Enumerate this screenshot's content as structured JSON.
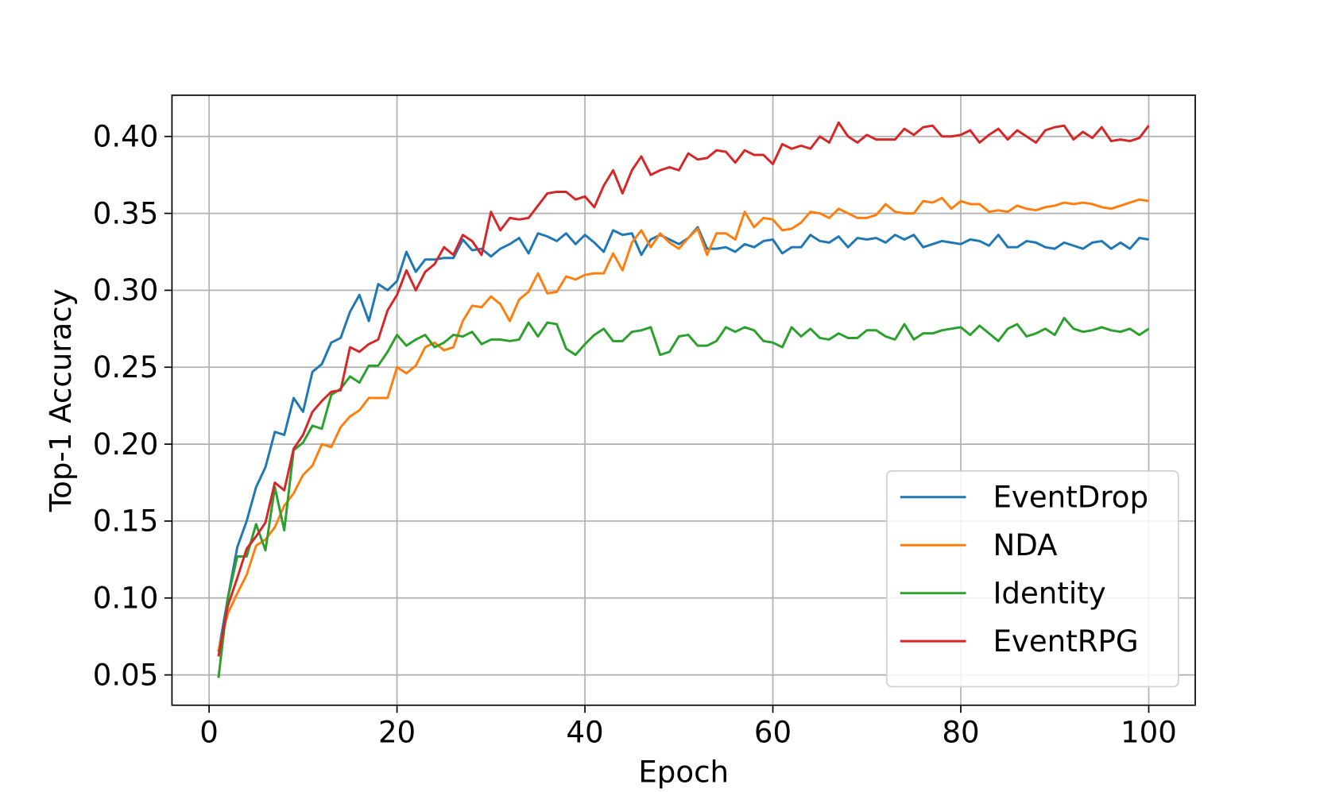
{
  "chart_data": {
    "type": "line",
    "xlabel": "Epoch",
    "ylabel": "Top-1 Accuracy",
    "x": [
      1,
      2,
      3,
      4,
      5,
      6,
      7,
      8,
      9,
      10,
      11,
      12,
      13,
      14,
      15,
      16,
      17,
      18,
      19,
      20,
      21,
      22,
      23,
      24,
      25,
      26,
      27,
      28,
      29,
      30,
      31,
      32,
      33,
      34,
      35,
      36,
      37,
      38,
      39,
      40,
      41,
      42,
      43,
      44,
      45,
      46,
      47,
      48,
      49,
      50,
      51,
      52,
      53,
      54,
      55,
      56,
      57,
      58,
      59,
      60,
      61,
      62,
      63,
      64,
      65,
      66,
      67,
      68,
      69,
      70,
      71,
      72,
      73,
      74,
      75,
      76,
      77,
      78,
      79,
      80,
      81,
      82,
      83,
      84,
      85,
      86,
      87,
      88,
      89,
      90,
      91,
      92,
      93,
      94,
      95,
      96,
      97,
      98,
      99,
      100
    ],
    "series": [
      {
        "name": "EventDrop",
        "color": "#1f77b4",
        "values": [
          0.065,
          0.1,
          0.133,
          0.15,
          0.172,
          0.185,
          0.208,
          0.206,
          0.23,
          0.221,
          0.247,
          0.252,
          0.266,
          0.269,
          0.286,
          0.297,
          0.28,
          0.304,
          0.3,
          0.306,
          0.325,
          0.312,
          0.32,
          0.32,
          0.321,
          0.321,
          0.333,
          0.326,
          0.327,
          0.322,
          0.327,
          0.33,
          0.334,
          0.324,
          0.337,
          0.335,
          0.332,
          0.337,
          0.33,
          0.336,
          0.331,
          0.325,
          0.339,
          0.336,
          0.337,
          0.323,
          0.333,
          0.336,
          0.333,
          0.33,
          0.334,
          0.341,
          0.327,
          0.327,
          0.328,
          0.325,
          0.33,
          0.328,
          0.332,
          0.333,
          0.324,
          0.328,
          0.328,
          0.336,
          0.332,
          0.331,
          0.335,
          0.328,
          0.334,
          0.333,
          0.334,
          0.331,
          0.336,
          0.333,
          0.336,
          0.328,
          0.33,
          0.332,
          0.331,
          0.33,
          0.333,
          0.332,
          0.329,
          0.336,
          0.328,
          0.328,
          0.332,
          0.331,
          0.328,
          0.327,
          0.331,
          0.329,
          0.327,
          0.331,
          0.332,
          0.327,
          0.331,
          0.327,
          0.334,
          0.333
        ]
      },
      {
        "name": "NDA",
        "color": "#ff7f0e",
        "values": [
          0.066,
          0.09,
          0.103,
          0.115,
          0.134,
          0.138,
          0.146,
          0.16,
          0.168,
          0.18,
          0.186,
          0.2,
          0.198,
          0.211,
          0.218,
          0.222,
          0.23,
          0.23,
          0.23,
          0.25,
          0.246,
          0.251,
          0.263,
          0.266,
          0.261,
          0.263,
          0.28,
          0.29,
          0.289,
          0.296,
          0.291,
          0.28,
          0.294,
          0.299,
          0.311,
          0.298,
          0.299,
          0.309,
          0.307,
          0.31,
          0.311,
          0.311,
          0.324,
          0.313,
          0.331,
          0.339,
          0.328,
          0.337,
          0.331,
          0.327,
          0.334,
          0.34,
          0.323,
          0.337,
          0.337,
          0.333,
          0.351,
          0.341,
          0.347,
          0.346,
          0.339,
          0.34,
          0.344,
          0.351,
          0.35,
          0.347,
          0.353,
          0.35,
          0.347,
          0.347,
          0.349,
          0.356,
          0.351,
          0.35,
          0.35,
          0.358,
          0.357,
          0.36,
          0.353,
          0.358,
          0.356,
          0.356,
          0.351,
          0.352,
          0.351,
          0.355,
          0.353,
          0.352,
          0.354,
          0.355,
          0.357,
          0.356,
          0.357,
          0.356,
          0.354,
          0.353,
          0.355,
          0.357,
          0.359,
          0.358
        ]
      },
      {
        "name": "Identity",
        "color": "#2ca02c",
        "values": [
          0.048,
          0.1,
          0.127,
          0.127,
          0.148,
          0.131,
          0.172,
          0.144,
          0.196,
          0.201,
          0.212,
          0.21,
          0.232,
          0.236,
          0.244,
          0.24,
          0.251,
          0.251,
          0.26,
          0.271,
          0.264,
          0.268,
          0.271,
          0.263,
          0.266,
          0.271,
          0.27,
          0.273,
          0.265,
          0.268,
          0.268,
          0.267,
          0.268,
          0.279,
          0.27,
          0.279,
          0.278,
          0.262,
          0.258,
          0.265,
          0.271,
          0.275,
          0.267,
          0.267,
          0.273,
          0.274,
          0.276,
          0.258,
          0.26,
          0.27,
          0.271,
          0.264,
          0.264,
          0.267,
          0.276,
          0.273,
          0.276,
          0.274,
          0.267,
          0.266,
          0.263,
          0.276,
          0.27,
          0.275,
          0.269,
          0.268,
          0.272,
          0.269,
          0.269,
          0.274,
          0.274,
          0.27,
          0.268,
          0.278,
          0.268,
          0.272,
          0.272,
          0.274,
          0.275,
          0.276,
          0.271,
          0.277,
          0.272,
          0.267,
          0.275,
          0.278,
          0.27,
          0.272,
          0.275,
          0.271,
          0.282,
          0.275,
          0.273,
          0.274,
          0.276,
          0.274,
          0.273,
          0.275,
          0.271,
          0.275
        ]
      },
      {
        "name": "EventRPG",
        "color": "#d62728",
        "values": [
          0.062,
          0.095,
          0.113,
          0.132,
          0.14,
          0.149,
          0.175,
          0.17,
          0.197,
          0.206,
          0.221,
          0.228,
          0.234,
          0.235,
          0.263,
          0.26,
          0.265,
          0.268,
          0.287,
          0.297,
          0.313,
          0.3,
          0.312,
          0.317,
          0.328,
          0.323,
          0.336,
          0.332,
          0.323,
          0.351,
          0.339,
          0.347,
          0.346,
          0.347,
          0.355,
          0.363,
          0.364,
          0.364,
          0.359,
          0.361,
          0.354,
          0.368,
          0.378,
          0.363,
          0.378,
          0.387,
          0.375,
          0.378,
          0.38,
          0.378,
          0.389,
          0.385,
          0.386,
          0.391,
          0.39,
          0.383,
          0.391,
          0.388,
          0.388,
          0.382,
          0.395,
          0.392,
          0.394,
          0.392,
          0.4,
          0.396,
          0.409,
          0.4,
          0.396,
          0.401,
          0.398,
          0.398,
          0.398,
          0.405,
          0.401,
          0.406,
          0.407,
          0.4,
          0.4,
          0.401,
          0.404,
          0.396,
          0.401,
          0.405,
          0.398,
          0.404,
          0.4,
          0.396,
          0.404,
          0.406,
          0.407,
          0.398,
          0.403,
          0.399,
          0.406,
          0.397,
          0.398,
          0.397,
          0.399,
          0.407
        ]
      }
    ],
    "xlim": [
      -3.95,
      104.95
    ],
    "ylim": [
      0.0303,
      0.4268
    ],
    "xticks": [
      0,
      20,
      40,
      60,
      80,
      100
    ],
    "yticks": [
      0.05,
      {
        "value": 0.1,
        "label": "0.10"
      },
      0.15,
      {
        "value": 0.2,
        "label": "0.20"
      },
      0.25,
      {
        "value": 0.3,
        "label": "0.30"
      },
      0.35,
      {
        "value": 0.4,
        "label": "0.40"
      }
    ],
    "grid": true,
    "legend": "lower right"
  }
}
